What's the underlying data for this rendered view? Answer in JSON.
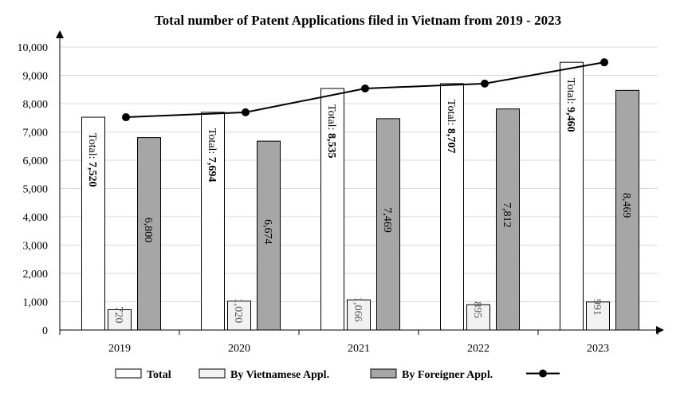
{
  "chart_data": {
    "type": "bar",
    "title": "Total number of Patent Applications filed in Vietnam from 2019 - 2023",
    "categories": [
      "2019",
      "2020",
      "2021",
      "2022",
      "2023"
    ],
    "series": [
      {
        "name": "Total",
        "values": [
          7520,
          7694,
          8535,
          8707,
          9460
        ],
        "color": "#ffffff"
      },
      {
        "name": "By Vietnamese Appl.",
        "values": [
          720,
          1020,
          1066,
          895,
          991
        ],
        "color": "#f2f2f2"
      },
      {
        "name": "By Foreigner Appl.",
        "values": [
          6800,
          6674,
          7469,
          7812,
          8469
        ],
        "color": "#a6a6a6"
      }
    ],
    "line_series": {
      "name": "",
      "values": [
        7520,
        7694,
        8535,
        8707,
        9460
      ],
      "color": "#000000"
    },
    "total_label_prefix": "Total:",
    "data_labels": {
      "total": [
        "7,520",
        "7,694",
        "8,535",
        "8,707",
        "9,460"
      ],
      "vietnamese": [
        "720",
        "1,020",
        "1,066",
        "895",
        "991"
      ],
      "foreigner": [
        "6,800",
        "6,674",
        "7,469",
        "7,812",
        "8,469"
      ]
    },
    "yticks": [
      "0",
      "1,000",
      "2,000",
      "3,000",
      "4,000",
      "5,000",
      "6,000",
      "7,000",
      "8,000",
      "9,000",
      "10,000"
    ],
    "ylim": [
      0,
      10000
    ],
    "grid": true,
    "legend_position": "bottom"
  }
}
